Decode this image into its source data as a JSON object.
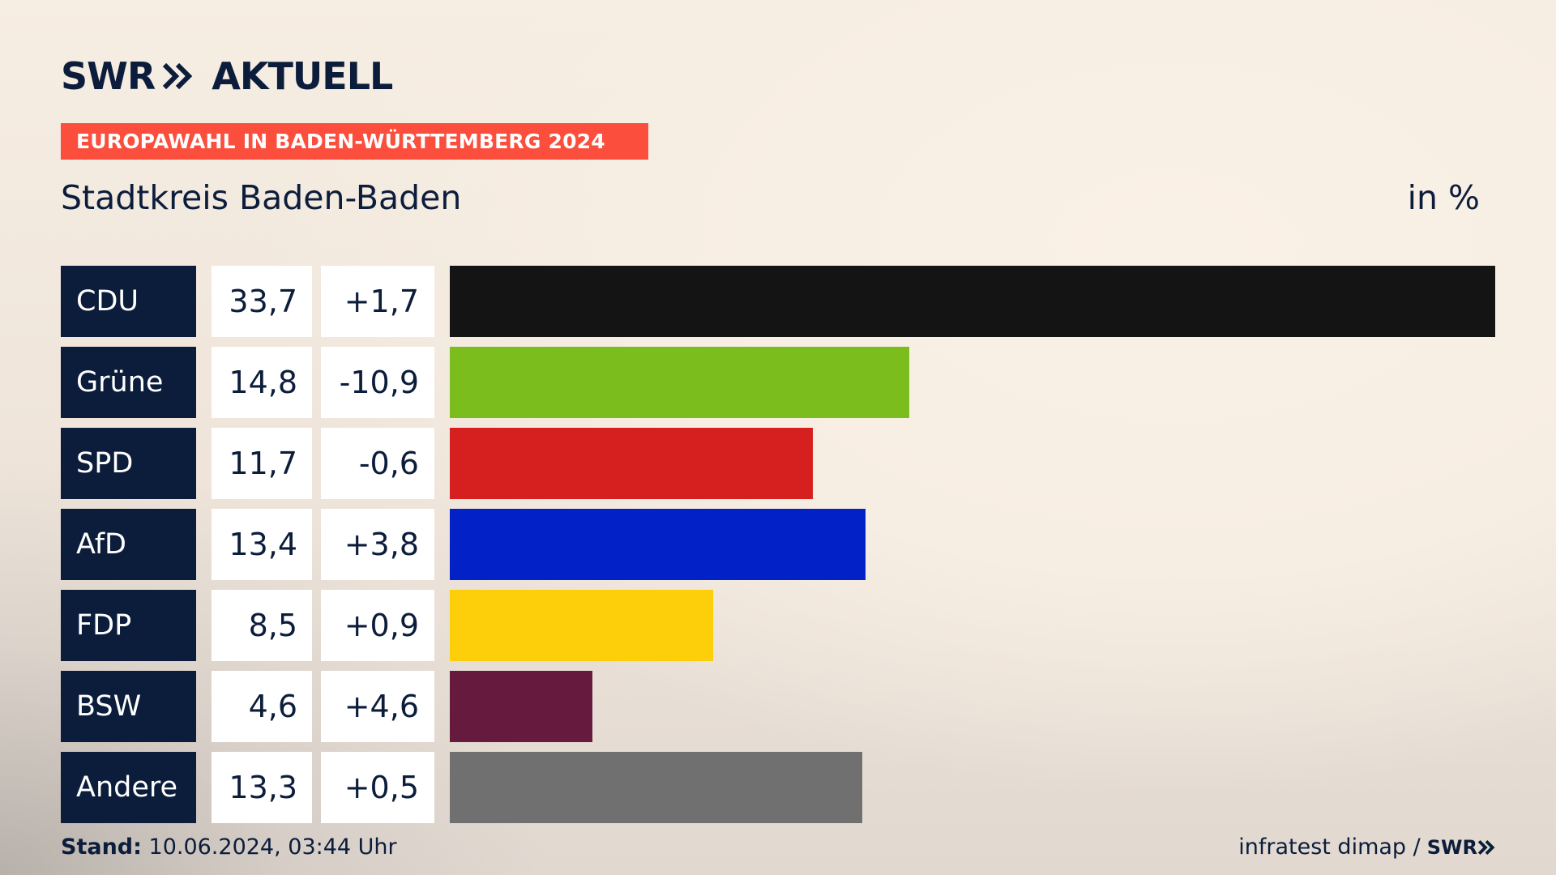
{
  "brand": {
    "logo_left": "SWR",
    "logo_right": "AKTUELL",
    "colors": {
      "navy": "#0c1d3b",
      "banner": "#fb4e3c"
    }
  },
  "banner": {
    "label": "EUROPAWAHL IN BADEN-WÜRTTEMBERG 2024"
  },
  "header": {
    "region": "Stadtkreis Baden-Baden",
    "unit": "in %"
  },
  "chart_data": {
    "type": "bar",
    "orientation": "horizontal",
    "title": "Stadtkreis Baden-Baden",
    "unit": "in %",
    "categories": [
      "CDU",
      "Grüne",
      "SPD",
      "AfD",
      "FDP",
      "BSW",
      "Andere"
    ],
    "values": [
      33.7,
      14.8,
      11.7,
      13.4,
      8.5,
      4.6,
      13.3
    ],
    "value_labels": [
      "33,7",
      "14,8",
      "11,7",
      "13,4",
      "8,5",
      "4,6",
      "13,3"
    ],
    "change_labels": [
      "+1,7",
      "-10,9",
      "-0,6",
      "+3,8",
      "+0,9",
      "+4,6",
      "+0,5"
    ],
    "colors": [
      "#141414",
      "#7abd1c",
      "#d6201f",
      "#0221c6",
      "#fdcf0a",
      "#661b3e",
      "#707071"
    ],
    "xlim": [
      0,
      33.7
    ],
    "grid": false,
    "legend": "none"
  },
  "footer": {
    "stand_label": "Stand:",
    "stand_value": "10.06.2024, 03:44 Uhr",
    "source": "infratest dimap /",
    "source_logo": "SWR"
  }
}
